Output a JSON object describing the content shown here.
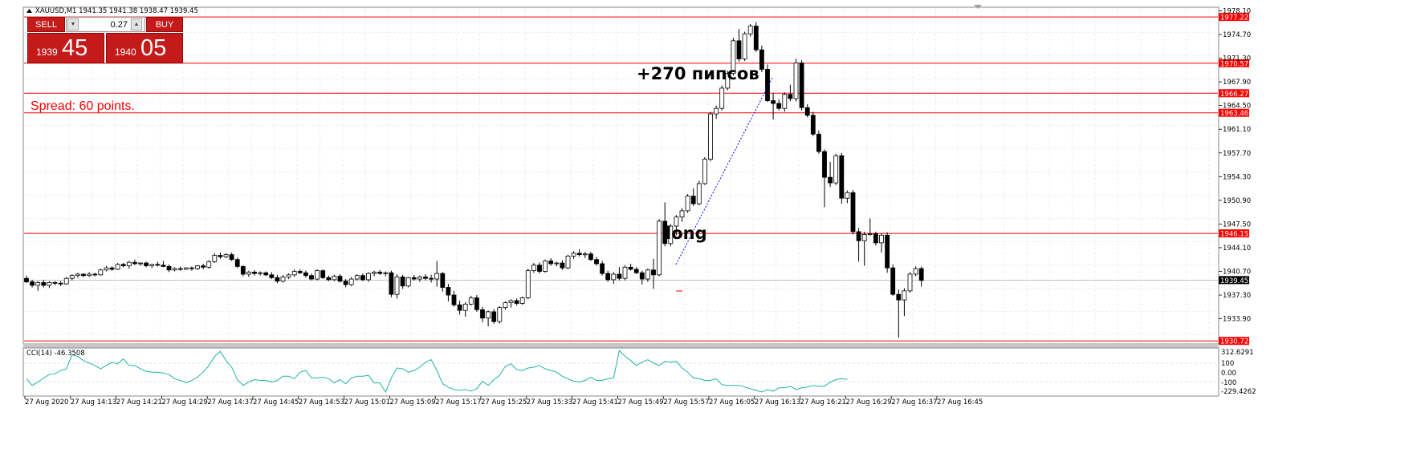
{
  "header": {
    "symbol_line": "XAUUSD,M1  1941.35 1941.38 1938.47 1939.45"
  },
  "trade_panel": {
    "sell_label": "SELL",
    "buy_label": "BUY",
    "lot_value": "0.27",
    "sell_price_small": "1939",
    "sell_price_large": "45",
    "buy_price_small": "1940",
    "buy_price_large": "05"
  },
  "annotations": {
    "spread": "Spread: 60 points.",
    "pips": "+270 пипсов",
    "long": "long"
  },
  "indicator": {
    "label": "CCI(14) -46.3508",
    "scale_labels": [
      "312.6291",
      "100",
      "0.00",
      "-100",
      "-229.4262"
    ]
  },
  "price_scale_labels": [
    "1978.10",
    "1974.70",
    "1971.30",
    "1967.90",
    "1964.50",
    "1961.10",
    "1957.70",
    "1954.30",
    "1950.90",
    "1947.50",
    "1944.10",
    "1940.70",
    "1937.30",
    "1933.90"
  ],
  "time_labels": [
    "27 Aug 2020",
    "27 Aug 14:13",
    "27 Aug 14:21",
    "27 Aug 14:29",
    "27 Aug 14:37",
    "27 Aug 14:45",
    "27 Aug 14:53",
    "27 Aug 15:01",
    "27 Aug 15:09",
    "27 Aug 15:17",
    "27 Aug 15:25",
    "27 Aug 15:33",
    "27 Aug 15:41",
    "27 Aug 15:49",
    "27 Aug 15:57",
    "27 Aug 16:05",
    "27 Aug 16:13",
    "27 Aug 16:21",
    "27 Aug 16:29",
    "27 Aug 16:37",
    "27 Aug 16:45"
  ],
  "chart_data": {
    "type": "candlestick",
    "symbol": "XAUUSD",
    "timeframe": "M1",
    "current_price": 1939.45,
    "ylim": [
      1930.4,
      1978.5
    ],
    "horizontal_levels": [
      1977.22,
      1970.57,
      1966.27,
      1963.46,
      1946.15,
      1930.72
    ],
    "level_labels": [
      "1977.22",
      "1970.57",
      "1966.27",
      "1963.46",
      "1946.15",
      "1930.72"
    ],
    "current_price_label": "1939.45",
    "colors": {
      "levels": "#ff0000",
      "bull_candle": "#ffffff",
      "bear_candle": "#000000",
      "cci": "#20b2aa",
      "tag_bg": "#ff0000",
      "price_tag_bg": "#000000"
    },
    "candles": [
      [
        1939.7,
        1940.1,
        1939.0,
        1939.2
      ],
      [
        1939.2,
        1939.5,
        1938.4,
        1938.7
      ],
      [
        1938.7,
        1939.3,
        1937.9,
        1939.1
      ],
      [
        1939.1,
        1939.5,
        1938.4,
        1938.7
      ],
      [
        1938.7,
        1939.3,
        1938.3,
        1939.1
      ],
      [
        1939.1,
        1939.3,
        1938.7,
        1939.0
      ],
      [
        1939.0,
        1939.3,
        1938.6,
        1938.9
      ],
      [
        1938.9,
        1939.9,
        1938.8,
        1939.7
      ],
      [
        1939.7,
        1940.3,
        1939.4,
        1940.1
      ],
      [
        1940.1,
        1940.5,
        1939.8,
        1940.3
      ],
      [
        1940.3,
        1940.4,
        1939.9,
        1940.1
      ],
      [
        1940.1,
        1940.6,
        1939.9,
        1940.3
      ],
      [
        1940.3,
        1940.5,
        1940.0,
        1940.2
      ],
      [
        1940.2,
        1941.1,
        1940.1,
        1940.9
      ],
      [
        1940.9,
        1941.5,
        1940.7,
        1941.2
      ],
      [
        1941.2,
        1941.4,
        1940.8,
        1941.0
      ],
      [
        1941.0,
        1941.9,
        1940.9,
        1941.7
      ],
      [
        1941.7,
        1941.9,
        1941.3,
        1941.5
      ],
      [
        1941.5,
        1942.2,
        1941.1,
        1942.0
      ],
      [
        1942.0,
        1942.4,
        1941.6,
        1941.8
      ],
      [
        1941.8,
        1942.0,
        1941.5,
        1941.9
      ],
      [
        1941.9,
        1942.1,
        1941.3,
        1941.5
      ],
      [
        1941.5,
        1941.8,
        1941.2,
        1941.7
      ],
      [
        1941.7,
        1942.1,
        1941.4,
        1941.6
      ],
      [
        1941.6,
        1942.2,
        1941.3,
        1941.4
      ],
      [
        1941.4,
        1941.7,
        1940.6,
        1940.9
      ],
      [
        1940.9,
        1941.3,
        1940.7,
        1941.1
      ],
      [
        1941.1,
        1941.4,
        1940.8,
        1941.0
      ],
      [
        1941.0,
        1941.3,
        1940.9,
        1941.2
      ],
      [
        1941.2,
        1941.4,
        1940.8,
        1941.1
      ],
      [
        1941.1,
        1941.6,
        1940.9,
        1941.5
      ],
      [
        1941.5,
        1941.8,
        1941.0,
        1941.3
      ],
      [
        1941.3,
        1942.3,
        1941.1,
        1942.1
      ],
      [
        1942.1,
        1943.3,
        1941.9,
        1943.0
      ],
      [
        1943.0,
        1943.4,
        1942.5,
        1942.8
      ],
      [
        1942.8,
        1943.3,
        1942.6,
        1943.1
      ],
      [
        1943.1,
        1943.4,
        1942.2,
        1942.4
      ],
      [
        1942.4,
        1942.7,
        1941.2,
        1941.4
      ],
      [
        1941.4,
        1941.6,
        1940.0,
        1940.3
      ],
      [
        1940.3,
        1940.8,
        1939.9,
        1940.6
      ],
      [
        1940.6,
        1940.9,
        1940.1,
        1940.4
      ],
      [
        1940.4,
        1940.7,
        1940.1,
        1940.5
      ],
      [
        1940.5,
        1940.7,
        1940.0,
        1940.2
      ],
      [
        1940.2,
        1940.6,
        1939.6,
        1939.8
      ],
      [
        1939.8,
        1940.2,
        1939.0,
        1939.3
      ],
      [
        1939.3,
        1940.2,
        1939.1,
        1939.9
      ],
      [
        1939.9,
        1940.4,
        1939.6,
        1940.2
      ],
      [
        1940.2,
        1941.0,
        1939.9,
        1940.7
      ],
      [
        1940.7,
        1941.0,
        1940.3,
        1940.5
      ],
      [
        1940.5,
        1940.8,
        1939.8,
        1940.1
      ],
      [
        1940.1,
        1940.4,
        1939.4,
        1939.6
      ],
      [
        1939.6,
        1941.0,
        1939.4,
        1940.8
      ],
      [
        1940.8,
        1941.0,
        1939.6,
        1939.8
      ],
      [
        1939.8,
        1940.1,
        1939.3,
        1939.5
      ],
      [
        1939.5,
        1940.2,
        1939.3,
        1940.0
      ],
      [
        1940.0,
        1940.3,
        1939.1,
        1939.3
      ],
      [
        1939.3,
        1939.6,
        1938.4,
        1938.8
      ],
      [
        1938.8,
        1939.9,
        1938.6,
        1939.6
      ],
      [
        1939.6,
        1940.3,
        1939.4,
        1940.1
      ],
      [
        1940.1,
        1940.4,
        1939.3,
        1939.5
      ],
      [
        1939.5,
        1940.6,
        1939.2,
        1940.4
      ],
      [
        1940.4,
        1940.8,
        1940.0,
        1940.6
      ],
      [
        1940.6,
        1940.9,
        1940.2,
        1940.4
      ],
      [
        1940.4,
        1940.7,
        1940.0,
        1940.5
      ],
      [
        1940.5,
        1940.8,
        1937.0,
        1937.4
      ],
      [
        1937.4,
        1940.3,
        1936.8,
        1939.9
      ],
      [
        1939.9,
        1940.2,
        1938.2,
        1938.6
      ],
      [
        1938.6,
        1939.9,
        1938.4,
        1939.8
      ],
      [
        1939.8,
        1940.2,
        1939.4,
        1939.6
      ],
      [
        1939.6,
        1940.1,
        1939.2,
        1939.9
      ],
      [
        1939.9,
        1940.3,
        1939.4,
        1939.7
      ],
      [
        1939.7,
        1940.2,
        1939.1,
        1939.6
      ],
      [
        1939.6,
        1942.2,
        1938.5,
        1940.4
      ],
      [
        1940.4,
        1940.6,
        1937.8,
        1938.4
      ],
      [
        1938.4,
        1938.9,
        1936.4,
        1937.3
      ],
      [
        1937.3,
        1937.9,
        1935.6,
        1935.9
      ],
      [
        1935.9,
        1936.5,
        1934.5,
        1935.1
      ],
      [
        1935.1,
        1936.3,
        1934.2,
        1936.0
      ],
      [
        1936.0,
        1937.2,
        1935.8,
        1936.9
      ],
      [
        1936.9,
        1937.3,
        1934.9,
        1935.2
      ],
      [
        1935.2,
        1935.6,
        1933.4,
        1934.0
      ],
      [
        1934.0,
        1935.1,
        1932.8,
        1934.9
      ],
      [
        1934.9,
        1935.3,
        1933.2,
        1933.5
      ],
      [
        1933.5,
        1935.7,
        1933.2,
        1935.5
      ],
      [
        1935.5,
        1936.4,
        1935.2,
        1936.2
      ],
      [
        1936.2,
        1936.7,
        1935.5,
        1936.5
      ],
      [
        1936.5,
        1936.8,
        1935.8,
        1936.1
      ],
      [
        1936.1,
        1937.1,
        1935.9,
        1936.9
      ],
      [
        1936.9,
        1941.1,
        1936.7,
        1940.8
      ],
      [
        1940.8,
        1941.9,
        1940.5,
        1941.6
      ],
      [
        1941.6,
        1942.0,
        1940.4,
        1940.7
      ],
      [
        1940.7,
        1942.4,
        1940.5,
        1942.2
      ],
      [
        1942.2,
        1942.6,
        1941.5,
        1941.8
      ],
      [
        1941.8,
        1942.1,
        1941.4,
        1941.9
      ],
      [
        1941.9,
        1942.3,
        1940.9,
        1941.2
      ],
      [
        1941.2,
        1943.1,
        1941.0,
        1942.9
      ],
      [
        1942.9,
        1943.6,
        1942.5,
        1943.3
      ],
      [
        1943.3,
        1943.9,
        1942.8,
        1943.1
      ],
      [
        1943.1,
        1943.5,
        1942.6,
        1943.2
      ],
      [
        1943.2,
        1943.5,
        1942.2,
        1942.4
      ],
      [
        1942.4,
        1942.8,
        1941.5,
        1941.8
      ],
      [
        1941.8,
        1942.2,
        1940.1,
        1940.4
      ],
      [
        1940.4,
        1940.8,
        1939.2,
        1939.5
      ],
      [
        1939.5,
        1940.6,
        1938.9,
        1940.3
      ],
      [
        1940.3,
        1941.3,
        1939.4,
        1939.7
      ],
      [
        1939.7,
        1941.6,
        1939.4,
        1941.3
      ],
      [
        1941.3,
        1941.8,
        1940.8,
        1941.0
      ],
      [
        1941.0,
        1941.3,
        1940.3,
        1940.5
      ],
      [
        1940.5,
        1940.8,
        1938.8,
        1939.6
      ],
      [
        1939.6,
        1941.1,
        1939.2,
        1940.9
      ],
      [
        1940.9,
        1942.5,
        1938.2,
        1940.2
      ],
      [
        1940.2,
        1948.2,
        1940.0,
        1947.9
      ],
      [
        1947.9,
        1950.6,
        1944.3,
        1944.7
      ],
      [
        1944.7,
        1947.5,
        1944.3,
        1947.2
      ],
      [
        1947.2,
        1948.8,
        1945.9,
        1948.5
      ],
      [
        1948.5,
        1949.8,
        1947.8,
        1949.4
      ],
      [
        1949.4,
        1951.8,
        1949.1,
        1951.5
      ],
      [
        1951.5,
        1952.6,
        1950.1,
        1950.4
      ],
      [
        1950.4,
        1953.7,
        1950.2,
        1953.3
      ],
      [
        1953.3,
        1957.1,
        1953.1,
        1956.8
      ],
      [
        1956.8,
        1963.6,
        1956.5,
        1963.3
      ],
      [
        1963.3,
        1964.5,
        1962.6,
        1964.1
      ],
      [
        1964.1,
        1967.4,
        1963.8,
        1967.0
      ],
      [
        1967.0,
        1969.5,
        1966.7,
        1969.1
      ],
      [
        1969.1,
        1974.2,
        1968.8,
        1973.8
      ],
      [
        1973.8,
        1975.5,
        1970.8,
        1971.2
      ],
      [
        1971.2,
        1975.1,
        1970.9,
        1974.8
      ],
      [
        1974.8,
        1976.2,
        1974.4,
        1975.9
      ],
      [
        1975.9,
        1976.5,
        1972.2,
        1972.5
      ],
      [
        1972.5,
        1973.1,
        1969.3,
        1969.7
      ],
      [
        1969.7,
        1970.4,
        1965.0,
        1965.2
      ],
      [
        1965.2,
        1966.3,
        1962.5,
        1964.8
      ],
      [
        1964.8,
        1965.4,
        1963.8,
        1964.1
      ],
      [
        1964.1,
        1966.4,
        1963.6,
        1966.1
      ],
      [
        1966.1,
        1967.5,
        1965.1,
        1965.5
      ],
      [
        1965.5,
        1971.2,
        1965.1,
        1970.6
      ],
      [
        1970.6,
        1971.0,
        1963.8,
        1964.2
      ],
      [
        1964.2,
        1964.7,
        1962.8,
        1963.1
      ],
      [
        1963.1,
        1963.6,
        1960.1,
        1960.4
      ],
      [
        1960.4,
        1960.9,
        1957.6,
        1957.9
      ],
      [
        1957.9,
        1958.2,
        1949.9,
        1954.2
      ],
      [
        1954.2,
        1956.4,
        1952.8,
        1953.4
      ],
      [
        1953.4,
        1957.6,
        1953.1,
        1957.3
      ],
      [
        1957.3,
        1957.7,
        1950.4,
        1951.2
      ],
      [
        1951.2,
        1952.3,
        1950.5,
        1952.0
      ],
      [
        1952.0,
        1952.4,
        1946.0,
        1946.4
      ],
      [
        1946.4,
        1946.9,
        1942.1,
        1945.1
      ],
      [
        1945.1,
        1946.4,
        1941.5,
        1946.0
      ],
      [
        1946.0,
        1948.3,
        1945.8,
        1946.1
      ],
      [
        1946.1,
        1946.4,
        1944.4,
        1944.8
      ],
      [
        1944.8,
        1946.2,
        1943.4,
        1945.9
      ],
      [
        1945.9,
        1946.3,
        1940.5,
        1941.2
      ],
      [
        1941.2,
        1941.7,
        1937.2,
        1937.4
      ],
      [
        1937.4,
        1938.1,
        1931.2,
        1936.6
      ],
      [
        1936.6,
        1938.3,
        1934.3,
        1937.9
      ],
      [
        1937.9,
        1940.6,
        1937.6,
        1940.3
      ],
      [
        1940.3,
        1941.4,
        1940.0,
        1941.1
      ],
      [
        1941.1,
        1941.4,
        1938.5,
        1939.4
      ]
    ],
    "cci_values": [
      -40,
      -120,
      -80,
      -30,
      10,
      20,
      60,
      80,
      250,
      230,
      180,
      150,
      120,
      80,
      120,
      160,
      140,
      200,
      120,
      120,
      80,
      50,
      40,
      40,
      30,
      10,
      -40,
      -60,
      -90,
      -60,
      -20,
      40,
      120,
      230,
      290,
      180,
      100,
      -50,
      -120,
      -80,
      -50,
      -60,
      -60,
      -80,
      -60,
      -10,
      -10,
      -40,
      40,
      60,
      -30,
      -30,
      -20,
      -40,
      -90,
      -50,
      -100,
      -30,
      -10,
      -10,
      0,
      -90,
      -90,
      -200,
      -30,
      90,
      80,
      40,
      60,
      100,
      160,
      190,
      60,
      -100,
      -140,
      -170,
      -180,
      -170,
      -190,
      -160,
      -70,
      -120,
      -50,
      0,
      110,
      140,
      70,
      60,
      90,
      100,
      120,
      80,
      60,
      40,
      -10,
      -40,
      -70,
      -80,
      -60,
      -20,
      -60,
      -60,
      -40,
      -30,
      300,
      230,
      180,
      120,
      160,
      190,
      150,
      120,
      170,
      160,
      170,
      90,
      40,
      -30,
      -40,
      -60,
      -60,
      -40,
      -110,
      -120,
      -120,
      -120,
      -140,
      -160,
      -180,
      -200,
      -170,
      -190,
      -150,
      -150,
      -130,
      -170,
      -150,
      -140,
      -120,
      -130,
      -130,
      -80,
      -50,
      -40,
      -46
    ]
  }
}
